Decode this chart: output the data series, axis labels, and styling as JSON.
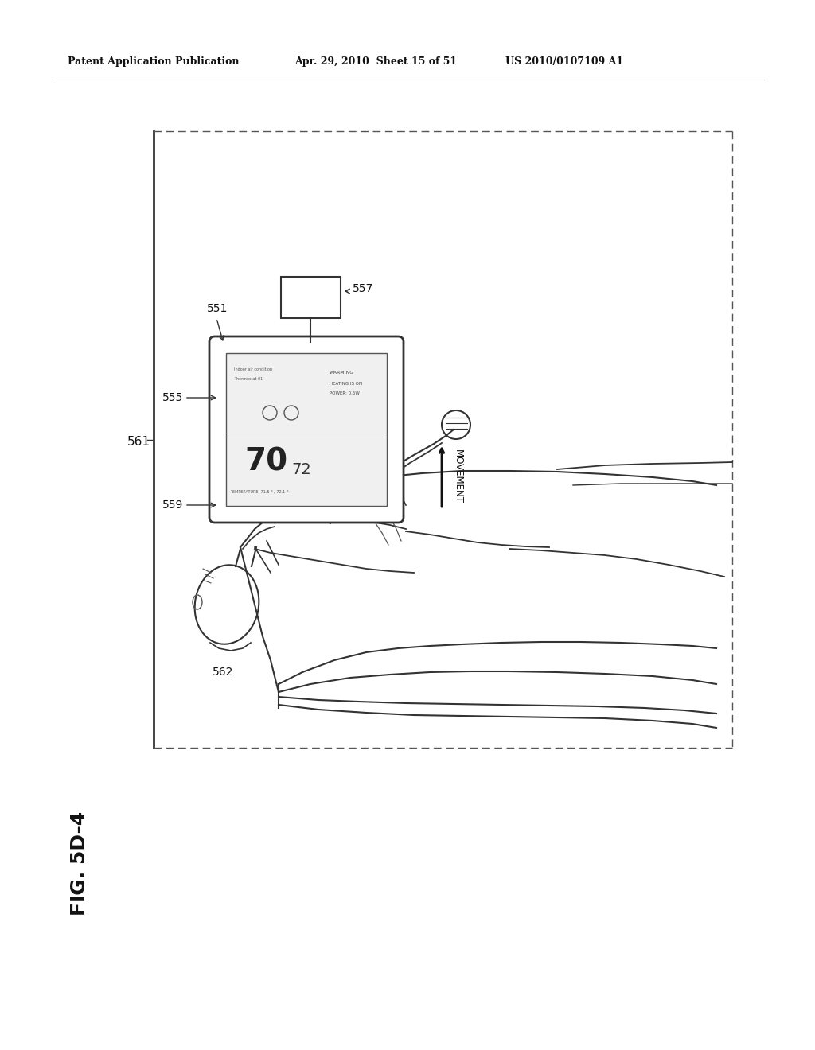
{
  "bg_color": "#ffffff",
  "header_text_left": "Patent Application Publication",
  "header_text_mid": "Apr. 29, 2010  Sheet 15 of 51",
  "header_text_right": "US 2010/0107109 A1",
  "fig_label": "FIG. 5D-4",
  "label_561": "561",
  "label_551": "551",
  "label_555": "555",
  "label_557": "557",
  "label_559": "559",
  "label_562": "562",
  "movement_text": "MOVEMENT",
  "text_color": "#111111",
  "line_color": "#333333",
  "dash_color": "#666666"
}
